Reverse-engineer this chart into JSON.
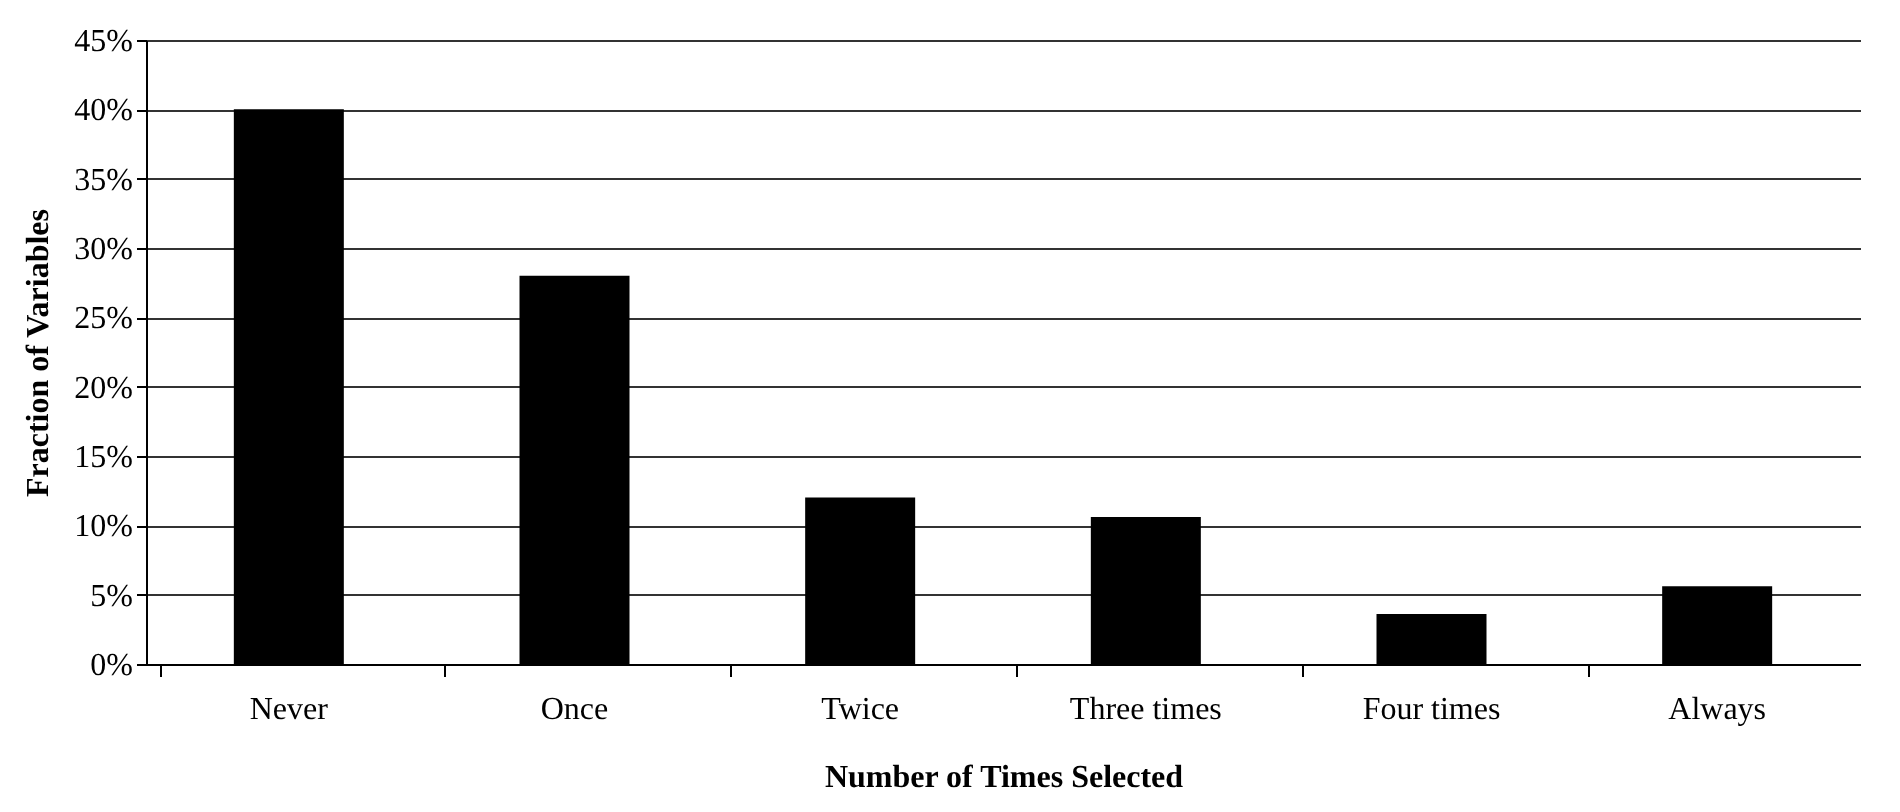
{
  "chart_data": {
    "type": "bar",
    "xlabel": "Number of Times Selected",
    "ylabel": "Fraction of Variables",
    "categories": [
      "Never",
      "Once",
      "Twice",
      "Three times",
      "Four times",
      "Always"
    ],
    "values": [
      40,
      28,
      12,
      10.6,
      3.6,
      5.6
    ],
    "color": "#000000",
    "ylim": [
      0,
      45
    ],
    "yticks": [
      {
        "value": 0,
        "label": "0%"
      },
      {
        "value": 5,
        "label": "5%"
      },
      {
        "value": 10,
        "label": "10%"
      },
      {
        "value": 15,
        "label": "15%"
      },
      {
        "value": 20,
        "label": "20%"
      },
      {
        "value": 25,
        "label": "25%"
      },
      {
        "value": 30,
        "label": "30%"
      },
      {
        "value": 35,
        "label": "35%"
      },
      {
        "value": 40,
        "label": "40%"
      },
      {
        "value": 45,
        "label": "45%"
      }
    ],
    "grid": "y"
  }
}
